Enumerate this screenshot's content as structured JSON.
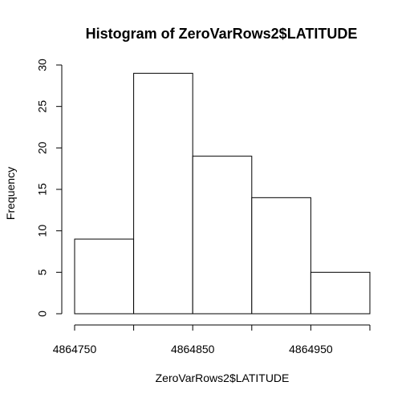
{
  "chart_data": {
    "type": "bar",
    "title": "Histogram of ZeroVarRows2$LATITUDE",
    "xlabel": "ZeroVarRows2$LATITUDE",
    "ylabel": "Frequency",
    "bins": [
      {
        "from": 4864750,
        "to": 4864800,
        "count": 9
      },
      {
        "from": 4864800,
        "to": 4864850,
        "count": 29
      },
      {
        "from": 4864850,
        "to": 4864900,
        "count": 19
      },
      {
        "from": 4864900,
        "to": 4864950,
        "count": 14
      },
      {
        "from": 4864950,
        "to": 4865000,
        "count": 5
      }
    ],
    "xlim": [
      4864750,
      4865000
    ],
    "x_ticks": [
      4864750,
      4864800,
      4864850,
      4864900,
      4864950,
      4865000
    ],
    "x_tick_labels": [
      {
        "value": 4864750,
        "label": "4864750"
      },
      {
        "value": 4864850,
        "label": "4864850"
      },
      {
        "value": 4864950,
        "label": "4864950"
      }
    ],
    "ylim": [
      0,
      30
    ],
    "y_ticks": [
      0,
      5,
      10,
      15,
      20,
      25,
      30
    ],
    "grid": false,
    "colors": {
      "fill": "#ffffff",
      "stroke": "#000000"
    }
  }
}
